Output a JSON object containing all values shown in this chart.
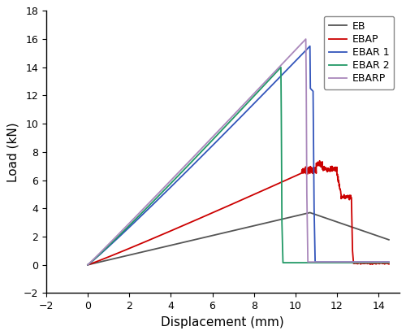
{
  "title": "",
  "xlabel": "Displacement (mm)",
  "ylabel": "Load (kN)",
  "xlim": [
    -2,
    15
  ],
  "ylim": [
    -2,
    18
  ],
  "xticks": [
    -2,
    0,
    2,
    4,
    6,
    8,
    10,
    12,
    14
  ],
  "yticks": [
    -2,
    0,
    2,
    4,
    6,
    8,
    10,
    12,
    14,
    16,
    18
  ],
  "legend_labels": [
    "EB",
    "EBAP",
    "EBAR 1",
    "EBAR 2",
    "EBARP"
  ],
  "line_colors": [
    "#555555",
    "#cc0000",
    "#3355bb",
    "#229966",
    "#aa88bb"
  ],
  "line_widths": [
    1.3,
    1.3,
    1.3,
    1.3,
    1.3
  ],
  "background_color": "#ffffff"
}
